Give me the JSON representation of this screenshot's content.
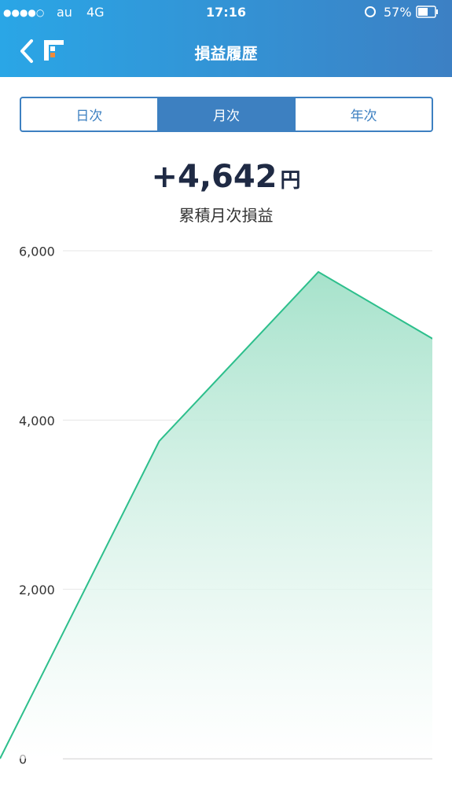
{
  "status": {
    "signal": "●●●●○",
    "carrier": "au",
    "network": "4G",
    "time": "17:16",
    "battery": "57%"
  },
  "header": {
    "title": "損益履歴"
  },
  "tabs": [
    "日次",
    "月次",
    "年次"
  ],
  "summary": {
    "amount": "+4,642",
    "unit": "円",
    "label": "累積月次損益"
  },
  "chart_data": {
    "type": "area",
    "categories": [
      null,
      null,
      null,
      null
    ],
    "values": [
      0,
      3750,
      5750,
      4650
    ],
    "color": "#2dbf8c",
    "ylim": [
      0,
      6000
    ],
    "yticks": [
      {
        "value": 0,
        "label": "0"
      },
      {
        "value": 2000,
        "label": "2,000"
      },
      {
        "value": 4000,
        "label": "4,000"
      },
      {
        "value": 6000,
        "label": "6,000"
      }
    ],
    "grid": true
  }
}
